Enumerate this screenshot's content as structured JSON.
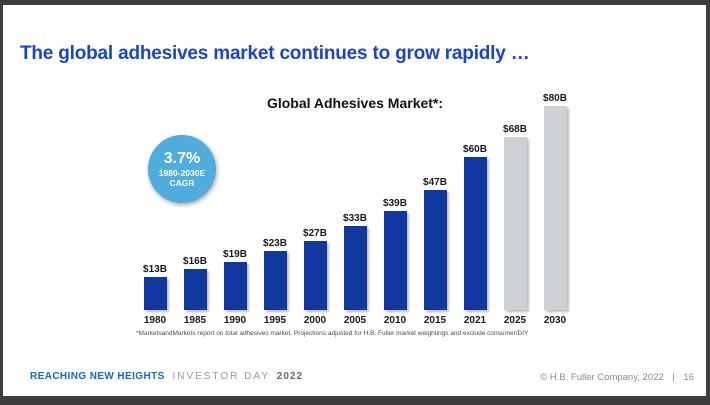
{
  "slide": {
    "title": "The global adhesives market continues to grow rapidly …",
    "footnote": "*MarketsandMarkets report on total adhesives market. Projections adjusted for H.B. Fuller market weightings and exclude consumer/DIY"
  },
  "badge": {
    "rate": "3.7%",
    "period": "1980-2030E",
    "metric": "CAGR",
    "color": "#4FACDC"
  },
  "chart_data": {
    "type": "bar",
    "title": "Global Adhesives Market*:",
    "categories": [
      "1980",
      "1985",
      "1990",
      "1995",
      "2000",
      "2005",
      "2010",
      "2015",
      "2021",
      "2025",
      "2030"
    ],
    "values": [
      13,
      16,
      19,
      23,
      27,
      33,
      39,
      47,
      60,
      68,
      80
    ],
    "value_labels": [
      "$13B",
      "$16B",
      "$19B",
      "$23B",
      "$27B",
      "$33B",
      "$39B",
      "$47B",
      "$60B",
      "$68B",
      "$80B"
    ],
    "bar_kinds": [
      "actual",
      "actual",
      "actual",
      "actual",
      "actual",
      "actual",
      "actual",
      "actual",
      "actual",
      "projected",
      "projected"
    ],
    "colors": {
      "actual": "#11389F",
      "projected": "#CCD1D3"
    },
    "ylim": [
      0,
      85
    ],
    "grid": false,
    "legend": "none",
    "xlabel": "",
    "ylabel": ""
  },
  "footer": {
    "brand": "REACHING NEW HEIGHTS",
    "event": "INVESTOR DAY",
    "year": "2022",
    "copyright": "© H.B. Fuller Company, 2022",
    "page": "16"
  }
}
